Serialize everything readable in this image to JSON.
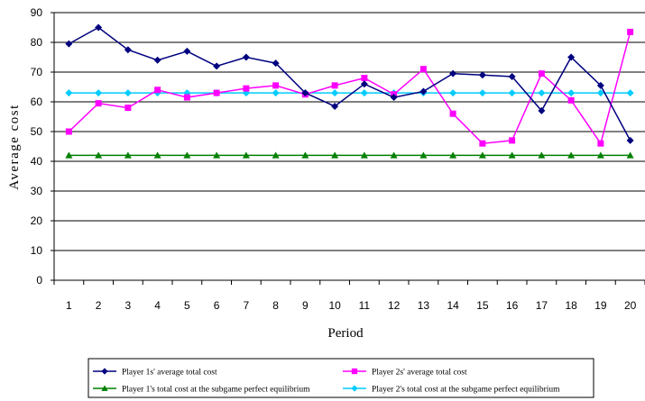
{
  "chart_data": {
    "type": "line",
    "title": "",
    "xlabel": "Period",
    "ylabel": "Average cost",
    "ylim": [
      0,
      90
    ],
    "yticks": [
      0,
      10,
      20,
      30,
      40,
      50,
      60,
      70,
      80,
      90
    ],
    "categories": [
      "1",
      "2",
      "3",
      "4",
      "5",
      "6",
      "7",
      "8",
      "9",
      "10",
      "11",
      "12",
      "13",
      "14",
      "15",
      "16",
      "17",
      "18",
      "19",
      "20"
    ],
    "grid": true,
    "legend_position": "bottom",
    "series": [
      {
        "name": "Player 1s' average total cost",
        "color": "#000080",
        "marker": "diamond",
        "values": [
          79.5,
          85,
          77.5,
          74,
          77,
          72,
          75,
          73,
          63,
          58.5,
          66,
          61.5,
          63.5,
          69.5,
          69,
          68.5,
          57,
          75,
          65.5,
          47
        ]
      },
      {
        "name": "Player 2s' average total cost",
        "color": "#ff00ff",
        "marker": "square",
        "values": [
          50,
          59.5,
          58,
          64,
          61.5,
          63,
          64.5,
          65.5,
          62.5,
          65.5,
          68,
          62.5,
          71,
          56,
          46,
          47,
          69.5,
          60.5,
          46,
          83.5
        ]
      },
      {
        "name": "Player 1's total cost at the subgame perfect equilibrium",
        "color": "#008000",
        "marker": "triangle",
        "values": [
          42,
          42,
          42,
          42,
          42,
          42,
          42,
          42,
          42,
          42,
          42,
          42,
          42,
          42,
          42,
          42,
          42,
          42,
          42,
          42
        ]
      },
      {
        "name": "Player 2's total cost at the subgame perfect equilibrium",
        "color": "#00ccff",
        "marker": "diamond",
        "values": [
          63,
          63,
          63,
          63,
          63,
          63,
          63,
          63,
          63,
          63,
          63,
          63,
          63,
          63,
          63,
          63,
          63,
          63,
          63,
          63
        ]
      }
    ]
  }
}
